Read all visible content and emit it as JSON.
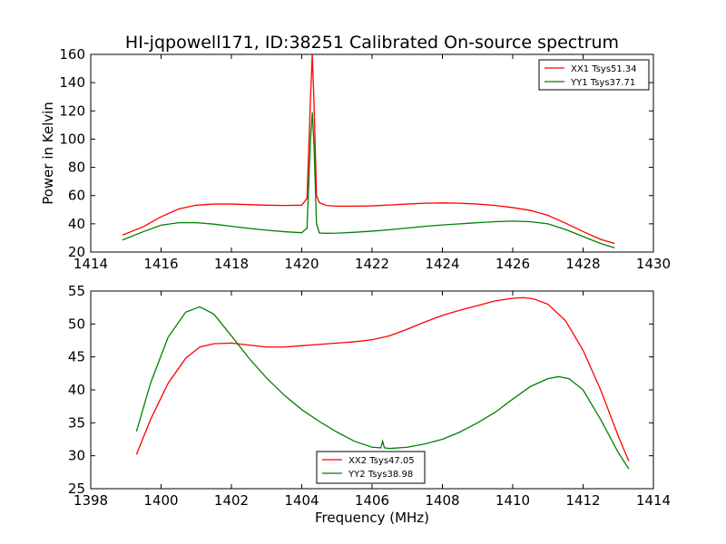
{
  "chart_data": [
    {
      "type": "line",
      "title": "HI-jqpowell171, ID:38251 Calibrated On-source spectrum",
      "xlabel": "",
      "ylabel": "Power in Kelvin",
      "xlim": [
        1414,
        1430
      ],
      "ylim": [
        20,
        160
      ],
      "xticks": [
        "1414",
        "1416",
        "1418",
        "1420",
        "1422",
        "1424",
        "1426",
        "1428",
        "1430"
      ],
      "yticks": [
        "20",
        "40",
        "60",
        "80",
        "100",
        "120",
        "140",
        "160"
      ],
      "legend_position": "top-right",
      "series": [
        {
          "name": "XX1 Tsys51.34",
          "color": "#ff0000",
          "x": [
            1414.9,
            1415.5,
            1416.0,
            1416.5,
            1417.0,
            1417.5,
            1418.0,
            1418.5,
            1419.0,
            1419.5,
            1420.0,
            1420.15,
            1420.25,
            1420.3,
            1420.35,
            1420.42,
            1420.5,
            1420.7,
            1421.0,
            1421.5,
            1422.0,
            1422.5,
            1423.0,
            1423.5,
            1424.0,
            1424.5,
            1425.0,
            1425.5,
            1426.0,
            1426.5,
            1427.0,
            1427.5,
            1428.0,
            1428.5,
            1428.9
          ],
          "y": [
            32,
            38,
            45,
            50.5,
            53.2,
            54,
            54,
            53.6,
            53.2,
            53,
            53.2,
            58,
            130,
            160,
            125,
            60,
            55,
            53,
            52.5,
            52.5,
            52.7,
            53.3,
            54,
            54.6,
            54.8,
            54.6,
            54,
            53,
            51.5,
            49.5,
            46,
            40.5,
            34.5,
            29,
            26
          ]
        },
        {
          "name": "YY1 Tsys37.71",
          "color": "#008000",
          "x": [
            1414.9,
            1415.5,
            1416.0,
            1416.5,
            1417.0,
            1417.5,
            1418.0,
            1418.5,
            1419.0,
            1419.5,
            1420.0,
            1420.15,
            1420.25,
            1420.3,
            1420.35,
            1420.42,
            1420.5,
            1420.7,
            1421.0,
            1421.5,
            1422.0,
            1422.5,
            1423.0,
            1423.5,
            1424.0,
            1424.5,
            1425.0,
            1425.5,
            1426.0,
            1426.5,
            1427.0,
            1427.5,
            1428.0,
            1428.5,
            1428.9
          ],
          "y": [
            28.5,
            34.5,
            39,
            40.8,
            40.8,
            39.8,
            38.2,
            36.8,
            35.5,
            34.4,
            33.7,
            37,
            100,
            119,
            95,
            40,
            33.5,
            33.3,
            33.4,
            34,
            34.8,
            35.8,
            37,
            38.2,
            39.2,
            40,
            40.8,
            41.5,
            41.9,
            41.5,
            40,
            36,
            31,
            26,
            23
          ]
        }
      ]
    },
    {
      "type": "line",
      "title": "",
      "xlabel": "Frequency (MHz)",
      "ylabel": "",
      "xlim": [
        1398,
        1414
      ],
      "ylim": [
        25,
        55
      ],
      "xticks": [
        "1398",
        "1400",
        "1402",
        "1404",
        "1406",
        "1408",
        "1410",
        "1412",
        "1414"
      ],
      "yticks": [
        "25",
        "30",
        "35",
        "40",
        "45",
        "50",
        "55"
      ],
      "legend_position": "lower-center",
      "series": [
        {
          "name": "XX2 Tsys47.05",
          "color": "#ff0000",
          "x": [
            1399.3,
            1399.7,
            1400.2,
            1400.7,
            1401.1,
            1401.5,
            1402.0,
            1402.5,
            1403.0,
            1403.5,
            1404.0,
            1404.5,
            1405.0,
            1405.5,
            1406.0,
            1406.5,
            1407.0,
            1407.5,
            1408.0,
            1408.5,
            1409.0,
            1409.5,
            1410.0,
            1410.3,
            1410.6,
            1411.0,
            1411.5,
            1412.0,
            1412.5,
            1413.0,
            1413.3
          ],
          "y": [
            30.2,
            35.5,
            41,
            44.8,
            46.5,
            47,
            47.1,
            46.8,
            46.5,
            46.5,
            46.7,
            46.9,
            47.1,
            47.3,
            47.6,
            48.2,
            49.2,
            50.3,
            51.3,
            52.1,
            52.8,
            53.5,
            53.9,
            54,
            53.8,
            53,
            50.5,
            46,
            40,
            33,
            29.2
          ]
        },
        {
          "name": "YY2 Tsys38.98",
          "color": "#008000",
          "x": [
            1399.3,
            1399.7,
            1400.2,
            1400.7,
            1401.1,
            1401.5,
            1402.0,
            1402.5,
            1403.0,
            1403.5,
            1404.0,
            1404.5,
            1405.0,
            1405.5,
            1406.0,
            1406.25,
            1406.3,
            1406.35,
            1406.5,
            1407.0,
            1407.5,
            1408.0,
            1408.5,
            1409.0,
            1409.5,
            1410.0,
            1410.5,
            1411.0,
            1411.3,
            1411.6,
            1412.0,
            1412.5,
            1413.0,
            1413.3
          ],
          "y": [
            33.7,
            41,
            48,
            51.8,
            52.6,
            51.5,
            48.2,
            44.8,
            41.8,
            39.2,
            37,
            35.2,
            33.6,
            32.2,
            31.3,
            31.2,
            32.2,
            31.2,
            31.1,
            31.3,
            31.8,
            32.5,
            33.6,
            35,
            36.6,
            38.6,
            40.5,
            41.7,
            42,
            41.7,
            40,
            35.5,
            30.5,
            28
          ]
        }
      ]
    }
  ]
}
